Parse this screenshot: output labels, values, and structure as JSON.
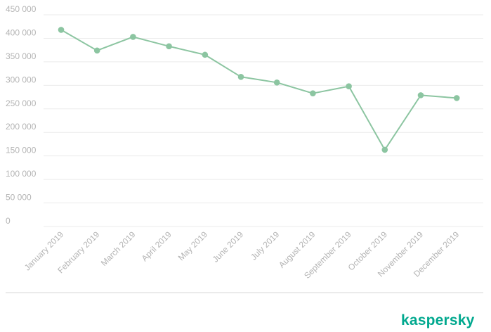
{
  "brand": {
    "logo_text": "kaspersky",
    "color": "#00a88e"
  },
  "colors": {
    "series": "#8cc5a1",
    "grid": "#ebebeb",
    "tick": "#b4b4b4",
    "baseline": "#d7d7d7"
  },
  "chart_data": {
    "type": "line",
    "title": "",
    "xlabel": "",
    "ylabel": "",
    "categories": [
      "January 2019",
      "February 2019",
      "March 2019",
      "April 2019",
      "May 2019",
      "June 2019",
      "July 2019",
      "August 2019",
      "September 2019",
      "October 2019",
      "November 2019",
      "December 2019"
    ],
    "series": [
      {
        "values": [
          418000,
          374000,
          403000,
          383000,
          365000,
          318000,
          306000,
          283000,
          298000,
          163000,
          279000,
          273000
        ]
      }
    ],
    "yticks": [
      0,
      50000,
      100000,
      150000,
      200000,
      250000,
      300000,
      350000,
      400000,
      450000
    ],
    "ytick_labels": [
      "0",
      "50 000",
      "100 000",
      "150 000",
      "200 000",
      "250 000",
      "300 000",
      "350 000",
      "400 000",
      "450 000"
    ],
    "ylim": [
      0,
      450000
    ],
    "grid": true,
    "legend": "none"
  }
}
